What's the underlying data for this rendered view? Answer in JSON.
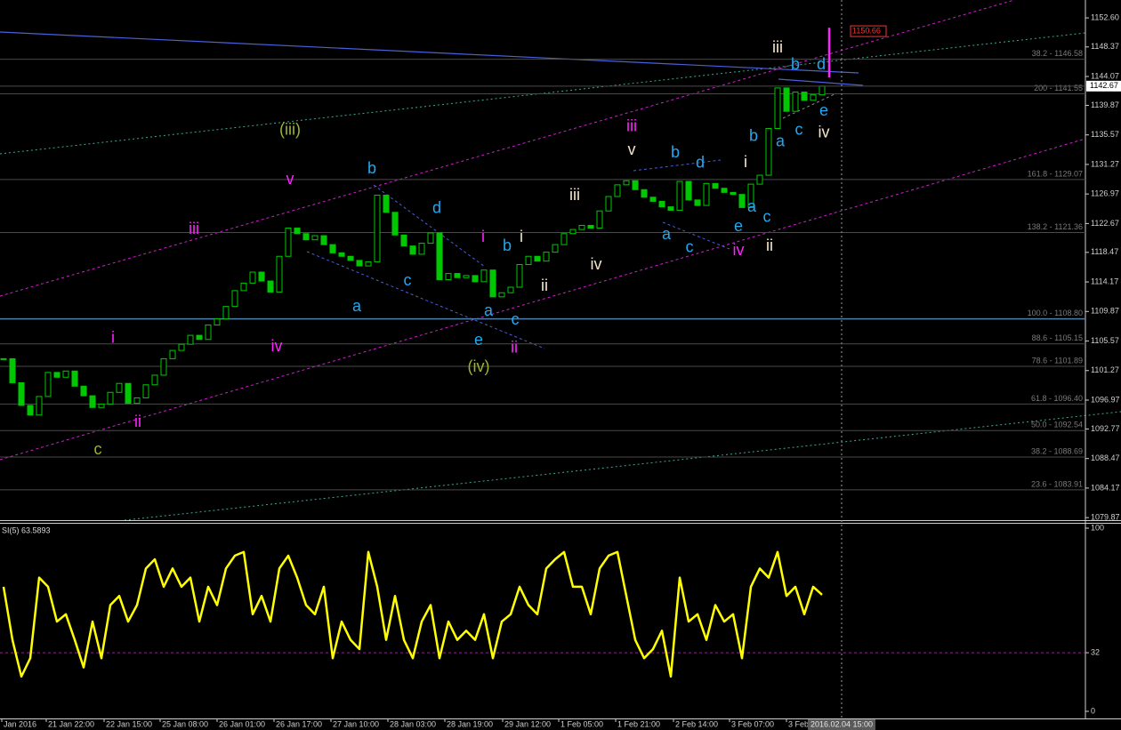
{
  "chart_data": [
    {
      "type": "candlestick",
      "color": "#00c800",
      "values": [
        1103.0,
        1099.5,
        1096.2,
        1094.8,
        1097.5,
        1101.0,
        1100.3,
        1101.2,
        1099.0,
        1097.6,
        1095.9,
        1096.4,
        1098.1,
        1099.4,
        1096.5,
        1097.3,
        1099.2,
        1100.6,
        1103.0,
        1104.2,
        1105.1,
        1106.4,
        1105.8,
        1107.9,
        1108.8,
        1110.6,
        1112.9,
        1114.0,
        1115.6,
        1114.3,
        1112.7,
        1117.9,
        1122.0,
        1121.2,
        1120.3,
        1120.9,
        1119.6,
        1118.4,
        1117.9,
        1117.3,
        1116.5,
        1117.1,
        1126.8,
        1124.3,
        1121.0,
        1119.4,
        1118.2,
        1119.8,
        1121.3,
        1114.5,
        1115.4,
        1114.8,
        1115.1,
        1114.2,
        1115.9,
        1112.0,
        1112.6,
        1113.4,
        1116.7,
        1117.9,
        1117.2,
        1118.5,
        1119.6,
        1121.2,
        1121.8,
        1122.4,
        1122.0,
        1124.5,
        1126.6,
        1128.3,
        1128.9,
        1127.6,
        1126.5,
        1125.9,
        1125.1,
        1124.6,
        1128.8,
        1126.1,
        1125.3,
        1128.5,
        1127.8,
        1127.2,
        1126.9,
        1125.0,
        1128.4,
        1129.7,
        1136.5,
        1142.4,
        1139.0,
        1141.8,
        1140.6,
        1141.4,
        1142.67
      ],
      "ylim": [
        1079.5,
        1155.2
      ],
      "yticks": [
        {
          "value": 1152.6,
          "label": "1152.60"
        },
        1148.37,
        1144.07,
        1139.87,
        1135.57,
        1131.27,
        1126.97,
        1122.67,
        1118.47,
        1114.17,
        1109.87,
        1105.57,
        1101.27,
        1096.97,
        1092.77,
        1088.47,
        1084.17,
        1079.87
      ],
      "xticks": [
        {
          "value": -0.2,
          "label": "Jan 2016"
        },
        {
          "value": 4.8,
          "label": "21 Jan 22:00"
        },
        {
          "value": 11.3,
          "label": "22 Jan 15:00"
        },
        {
          "value": 17.6,
          "label": "25 Jan 08:00"
        },
        {
          "value": 24,
          "label": "26 Jan 01:00"
        },
        {
          "value": 30.4,
          "label": "26 Jan 17:00"
        },
        {
          "value": 36.8,
          "label": "27 Jan 10:00"
        },
        {
          "value": 43.2,
          "label": "28 Jan 03:00"
        },
        {
          "value": 49.6,
          "label": "28 Jan 19:00"
        },
        {
          "value": 56.1,
          "label": "29 Jan 12:00"
        },
        {
          "value": 62.4,
          "label": "1 Feb 05:00"
        },
        {
          "value": 68.8,
          "label": "1 Feb 21:00"
        },
        {
          "value": 75.3,
          "label": "2 Feb 14:00"
        },
        {
          "value": 81.6,
          "label": "3 Feb 07:00"
        },
        {
          "value": 88,
          "label": "3 Feb"
        }
      ],
      "fib_color": "#4a4a4a",
      "fib_levels": [
        {
          "value": 1146.58,
          "label": "38.2 - 1146.58"
        },
        {
          "value": 1141.55,
          "label": "200 - 1141.55"
        },
        {
          "value": 1129.07,
          "label": "161.8 - 1129.07"
        },
        {
          "value": 1121.36,
          "label": "138.2 - 1121.36"
        },
        {
          "value": 1108.8,
          "label": "100.0 - 1108.80",
          "color": "#4f7fa8"
        },
        {
          "value": 1105.15,
          "label": "88.6 - 1105.15"
        },
        {
          "value": 1101.89,
          "label": "78.6 - 1101.89"
        },
        {
          "value": 1096.4,
          "label": "61.8 - 1096.40"
        },
        {
          "value": 1092.54,
          "label": "50.0 - 1092.54"
        },
        {
          "value": 1088.69,
          "label": "38.2 - 1088.69"
        },
        {
          "value": 1083.91,
          "label": "23.6 - 1083.91"
        }
      ],
      "target": {
        "value": 1150.66,
        "label": "1150.66",
        "color": "#ff3030"
      },
      "crosshair": {
        "x": 94.2,
        "label": "2016.02.04 15:00"
      },
      "wave_labels": [
        {
          "color": "#9ab52a",
          "labels": [
            {
              "text": "(iii)",
              "x": 32.2,
              "y": 1136.2
            },
            {
              "text": "(iv)",
              "x": 53.4,
              "y": 1101.7
            },
            {
              "text": "c",
              "x": 10.6,
              "y": 1089.7
            }
          ]
        },
        {
          "color": "#ff22ff",
          "labels": [
            {
              "text": "i",
              "x": 12.3,
              "y": 1105.9
            },
            {
              "text": "ii",
              "x": 15.1,
              "y": 1093.7
            },
            {
              "text": "iii",
              "x": 21.4,
              "y": 1121.8
            },
            {
              "text": "iv",
              "x": 30.7,
              "y": 1104.7
            },
            {
              "text": "v",
              "x": 32.2,
              "y": 1129.0
            },
            {
              "text": "i",
              "x": 53.9,
              "y": 1120.6
            },
            {
              "text": "ii",
              "x": 57.4,
              "y": 1104.5
            },
            {
              "text": "iii",
              "x": 70.6,
              "y": 1136.7
            },
            {
              "text": "iv",
              "x": 82.6,
              "y": 1118.7
            }
          ]
        },
        {
          "color": "#20a8f0",
          "labels": [
            {
              "text": "b",
              "x": 41.4,
              "y": 1130.6
            },
            {
              "text": "d",
              "x": 48.7,
              "y": 1124.8
            },
            {
              "text": "a",
              "x": 39.7,
              "y": 1110.5
            },
            {
              "text": "c",
              "x": 45.4,
              "y": 1114.3
            },
            {
              "text": "e",
              "x": 53.4,
              "y": 1105.6
            },
            {
              "text": "a",
              "x": 54.5,
              "y": 1109.9
            },
            {
              "text": "b",
              "x": 56.6,
              "y": 1119.3
            },
            {
              "text": "c",
              "x": 57.5,
              "y": 1108.6
            },
            {
              "text": "a",
              "x": 74.5,
              "y": 1121.0
            },
            {
              "text": "b",
              "x": 75.5,
              "y": 1132.9
            },
            {
              "text": "c",
              "x": 77.1,
              "y": 1119.1
            },
            {
              "text": "d",
              "x": 78.3,
              "y": 1131.4
            },
            {
              "text": "e",
              "x": 82.6,
              "y": 1122.2
            },
            {
              "text": "a",
              "x": 84.1,
              "y": 1125.0
            },
            {
              "text": "c",
              "x": 85.8,
              "y": 1123.5
            },
            {
              "text": "b",
              "x": 84.3,
              "y": 1135.3
            },
            {
              "text": "a",
              "x": 87.3,
              "y": 1134.5
            },
            {
              "text": "c",
              "x": 89.4,
              "y": 1136.2
            },
            {
              "text": "b",
              "x": 89.0,
              "y": 1145.7
            },
            {
              "text": "d",
              "x": 91.9,
              "y": 1145.7
            },
            {
              "text": "e",
              "x": 92.2,
              "y": 1139.0
            }
          ]
        },
        {
          "color": "#f5e6c8",
          "labels": [
            {
              "text": "i",
              "x": 58.2,
              "y": 1120.6
            },
            {
              "text": "ii",
              "x": 60.8,
              "y": 1113.5
            },
            {
              "text": "iii",
              "x": 64.2,
              "y": 1126.7
            },
            {
              "text": "iv",
              "x": 66.6,
              "y": 1116.6
            },
            {
              "text": "v",
              "x": 70.6,
              "y": 1133.3
            },
            {
              "text": "i",
              "x": 83.4,
              "y": 1131.5
            },
            {
              "text": "ii",
              "x": 86.1,
              "y": 1119.3
            },
            {
              "text": "iii",
              "x": 87.0,
              "y": 1148.2
            },
            {
              "text": "iv",
              "x": 92.2,
              "y": 1135.8
            }
          ]
        }
      ]
    },
    {
      "type": "line",
      "title": "SI(5) 63.5893",
      "color": "#ffff00",
      "values": [
        68,
        39,
        19,
        29,
        73,
        68,
        49,
        53,
        39,
        24,
        49,
        29,
        58,
        63,
        49,
        58,
        78,
        83,
        68,
        78,
        68,
        73,
        49,
        68,
        58,
        78,
        85,
        87,
        53,
        63,
        49,
        78,
        85,
        73,
        58,
        53,
        68,
        29,
        49,
        39,
        34,
        87,
        68,
        39,
        63,
        39,
        29,
        49,
        58,
        29,
        49,
        39,
        44,
        39,
        53,
        29,
        49,
        53,
        68,
        58,
        53,
        78,
        83,
        87,
        68,
        68,
        53,
        78,
        85,
        87,
        63,
        39,
        29,
        34,
        44,
        19,
        73,
        49,
        53,
        39,
        58,
        49,
        53,
        29,
        68,
        78,
        73,
        87,
        63,
        68,
        53,
        68,
        63.6
      ],
      "ylim": [
        0,
        100
      ],
      "yticks": [
        0,
        32,
        100
      ],
      "levels": [
        32
      ],
      "level_color": "#8a2a8a"
    }
  ]
}
